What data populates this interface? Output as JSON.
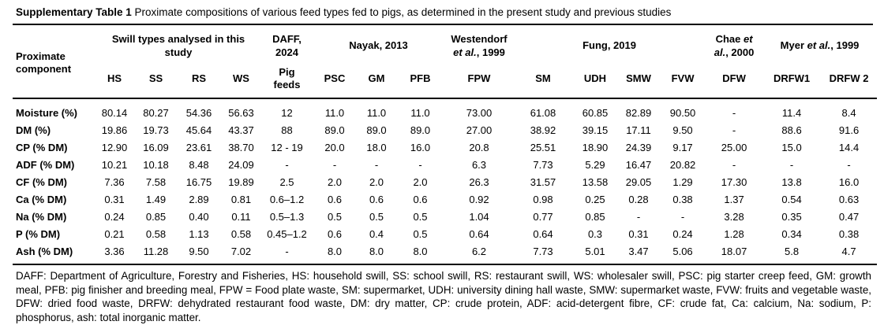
{
  "title": {
    "bold": "Supplementary Table 1",
    "rest": " Proximate compositions of various feed types fed to pigs, as determined in the present study and previous studies"
  },
  "table": {
    "corner_header": "Proximate component",
    "groups": [
      {
        "label": "Swill types analysed in this study",
        "colspan": 4
      },
      {
        "label": "DAFF, 2024",
        "colspan": 1
      },
      {
        "label": "Nayak, 2013",
        "colspan": 3
      },
      {
        "label": "Westendorf |et al.|, 1999",
        "colspan": 1
      },
      {
        "label": "Fung, 2019",
        "colspan": 4
      },
      {
        "label": "Chae |et al.|, 2000",
        "colspan": 1
      },
      {
        "label": "Myer |et al.|, 1999",
        "colspan": 2
      }
    ],
    "columns": [
      "HS",
      "SS",
      "RS",
      "WS",
      "Pig feeds",
      "PSC",
      "GM",
      "PFB",
      "FPW",
      "SM",
      "UDH",
      "SMW",
      "FVW",
      "DFW",
      "DRFW1",
      "DRFW 2"
    ],
    "rows": [
      {
        "label": "Moisture (%)",
        "values": [
          "80.14",
          "80.27",
          "54.36",
          "56.63",
          "12",
          "11.0",
          "11.0",
          "11.0",
          "73.00",
          "61.08",
          "60.85",
          "82.89",
          "90.50",
          "-",
          "11.4",
          "8.4"
        ]
      },
      {
        "label": "DM (%)",
        "values": [
          "19.86",
          "19.73",
          "45.64",
          "43.37",
          "88",
          "89.0",
          "89.0",
          "89.0",
          "27.00",
          "38.92",
          "39.15",
          "17.11",
          "9.50",
          "-",
          "88.6",
          "91.6"
        ]
      },
      {
        "label": "CP (% DM)",
        "values": [
          "12.90",
          "16.09",
          "23.61",
          "38.70",
          "12 - 19",
          "20.0",
          "18.0",
          "16.0",
          "20.8",
          "25.51",
          "18.90",
          "24.39",
          "9.17",
          "25.00",
          "15.0",
          "14.4"
        ]
      },
      {
        "label": "ADF (% DM)",
        "values": [
          "10.21",
          "10.18",
          "8.48",
          "24.09",
          "-",
          "-",
          "-",
          "-",
          "6.3",
          "7.73",
          "5.29",
          "16.47",
          "20.82",
          "-",
          "-",
          "-"
        ]
      },
      {
        "label": "CF (% DM)",
        "values": [
          "7.36",
          "7.58",
          "16.75",
          "19.89",
          "2.5",
          "2.0",
          "2.0",
          "2.0",
          "26.3",
          "31.57",
          "13.58",
          "29.05",
          "1.29",
          "17.30",
          "13.8",
          "16.0"
        ]
      },
      {
        "label": "Ca (% DM)",
        "values": [
          "0.31",
          "1.49",
          "2.89",
          "0.81",
          "0.6–1.2",
          "0.6",
          "0.6",
          "0.6",
          "0.92",
          "0.98",
          "0.25",
          "0.28",
          "0.38",
          "1.37",
          "0.54",
          "0.63"
        ]
      },
      {
        "label": "Na (% DM)",
        "values": [
          "0.24",
          "0.85",
          "0.40",
          "0.11",
          "0.5–1.3",
          "0.5",
          "0.5",
          "0.5",
          "1.04",
          "0.77",
          "0.85",
          "-",
          "-",
          "3.28",
          "0.35",
          "0.47"
        ]
      },
      {
        "label": "P (% DM)",
        "values": [
          "0.21",
          "0.58",
          "1.13",
          "0.58",
          "0.45–1.2",
          "0.6",
          "0.4",
          "0.5",
          "0.64",
          "0.64",
          "0.3",
          "0.31",
          "0.24",
          "1.28",
          "0.34",
          "0.38"
        ]
      },
      {
        "label": "Ash (% DM)",
        "values": [
          "3.36",
          "11.28",
          "9.50",
          "7.02",
          "-",
          "8.0",
          "8.0",
          "8.0",
          "6.2",
          "7.73",
          "5.01",
          "3.47",
          "5.06",
          "18.07",
          "5.8",
          "4.7"
        ]
      }
    ]
  },
  "footnote": "DAFF: Department of Agriculture, Forestry and Fisheries, HS: household swill, SS: school swill, RS: restaurant swill, WS: wholesaler swill, PSC: pig starter creep feed, GM: growth meal, PFB: pig finisher and breeding meal, FPW = Food plate waste, SM: supermarket, UDH: university dining hall waste, SMW: supermarket waste, FVW: fruits and vegetable waste, DFW: dried food waste, DRFW: dehydrated restaurant food waste, DM: dry matter, CP: crude protein, ADF: acid-detergent fibre, CF: crude fat, Ca: calcium, Na: sodium, P: phosphorus, ash: total inorganic matter."
}
